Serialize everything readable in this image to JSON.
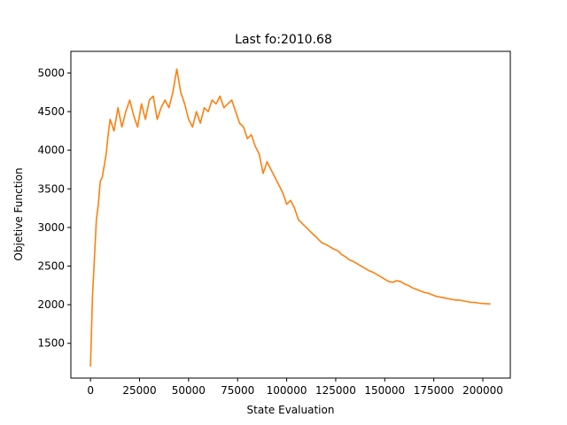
{
  "chart_data": {
    "type": "line",
    "title": "Last fo:2010.68",
    "xlabel": "State Evaluation",
    "ylabel": "Objetive Function",
    "xlim": [
      -10000,
      214000
    ],
    "ylim": [
      1050,
      5280
    ],
    "x_ticks": [
      0,
      25000,
      50000,
      75000,
      100000,
      125000,
      150000,
      175000,
      200000
    ],
    "y_ticks": [
      1500,
      2000,
      2500,
      3000,
      3500,
      4000,
      4500,
      5000
    ],
    "grid": false,
    "legend": "none",
    "series": [
      {
        "color": "#ff7f0e",
        "x": [
          0,
          1000,
          2000,
          3000,
          4000,
          5000,
          6000,
          7000,
          8000,
          9000,
          10000,
          12000,
          14000,
          16000,
          18000,
          20000,
          22000,
          24000,
          26000,
          28000,
          30000,
          32000,
          34000,
          36000,
          38000,
          40000,
          42000,
          44000,
          46000,
          48000,
          50000,
          52000,
          54000,
          56000,
          58000,
          60000,
          62000,
          64000,
          66000,
          68000,
          70000,
          72000,
          74000,
          76000,
          78000,
          80000,
          82000,
          84000,
          86000,
          88000,
          90000,
          92000,
          94000,
          96000,
          98000,
          100000,
          102000,
          104000,
          106000,
          108000,
          110000,
          112000,
          114000,
          116000,
          118000,
          120000,
          122000,
          124000,
          126000,
          128000,
          130000,
          132000,
          134000,
          136000,
          138000,
          140000,
          142000,
          144000,
          146000,
          148000,
          150000,
          152000,
          154000,
          156000,
          158000,
          160000,
          162000,
          164000,
          166000,
          168000,
          170000,
          172000,
          174000,
          176000,
          178000,
          180000,
          182000,
          184000,
          186000,
          188000,
          190000,
          192000,
          194000,
          196000,
          198000,
          200000,
          202000,
          204000
        ],
        "y": [
          1200,
          2100,
          2600,
          3100,
          3300,
          3600,
          3650,
          3800,
          3950,
          4200,
          4400,
          4250,
          4550,
          4300,
          4500,
          4650,
          4450,
          4300,
          4600,
          4400,
          4650,
          4700,
          4400,
          4550,
          4650,
          4550,
          4750,
          5050,
          4750,
          4600,
          4400,
          4300,
          4500,
          4350,
          4550,
          4500,
          4650,
          4600,
          4700,
          4550,
          4600,
          4650,
          4500,
          4350,
          4300,
          4150,
          4200,
          4050,
          3950,
          3700,
          3850,
          3750,
          3650,
          3550,
          3450,
          3300,
          3350,
          3250,
          3100,
          3050,
          3000,
          2950,
          2900,
          2850,
          2800,
          2780,
          2750,
          2720,
          2700,
          2650,
          2620,
          2580,
          2560,
          2530,
          2500,
          2470,
          2440,
          2420,
          2390,
          2360,
          2330,
          2300,
          2290,
          2310,
          2300,
          2270,
          2250,
          2220,
          2200,
          2180,
          2160,
          2150,
          2130,
          2110,
          2100,
          2090,
          2080,
          2070,
          2060,
          2060,
          2050,
          2040,
          2030,
          2030,
          2020,
          2015,
          2012,
          2010
        ]
      }
    ]
  }
}
